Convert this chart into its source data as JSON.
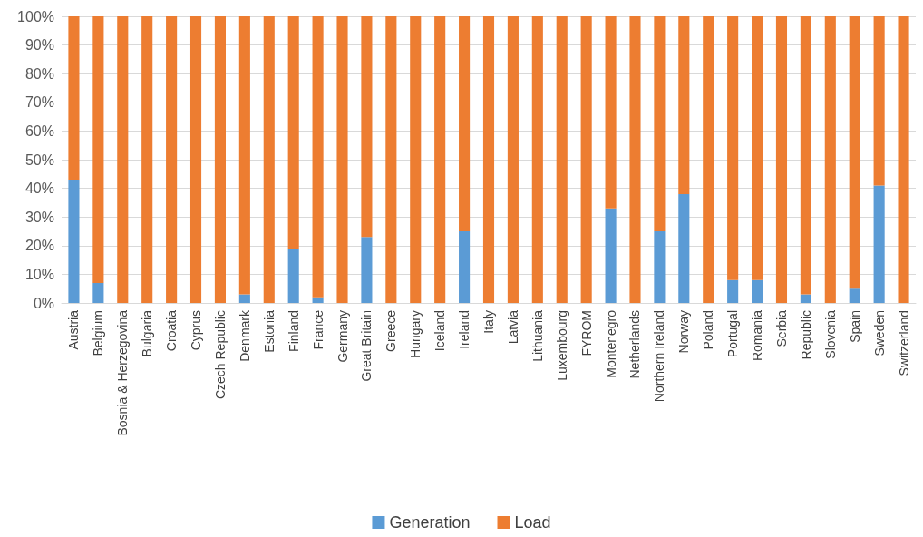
{
  "chart_data": {
    "type": "bar",
    "stacked": true,
    "categories": [
      "Austria",
      "Belgium",
      "Bosnia & Herzegovina",
      "Bulgaria",
      "Croatia",
      "Cyprus",
      "Czech Republic",
      "Denmark",
      "Estonia",
      "Finland",
      "France",
      "Germany",
      "Great Britain",
      "Greece",
      "Hungary",
      "Iceland",
      "Ireland",
      "Italy",
      "Latvia",
      "Lithuania",
      "Luxembourg",
      "FYROM",
      "Montenegro",
      "Netherlands",
      "Northern Ireland",
      "Norway",
      "Poland",
      "Portugal",
      "Romania",
      "Serbia",
      "Republic",
      "Slovenia",
      "Spain",
      "Sweden",
      "Switzerland"
    ],
    "series": [
      {
        "name": "Generation",
        "color": "#5b9bd5",
        "values": [
          43,
          7,
          0,
          0,
          0,
          0,
          0,
          3,
          0,
          19,
          2,
          0,
          23,
          0,
          0,
          0,
          25,
          0,
          0,
          0,
          0,
          0,
          33,
          0,
          25,
          38,
          0,
          8,
          8,
          0,
          3,
          0,
          5,
          41,
          0
        ]
      },
      {
        "name": "Load",
        "color": "#ed7d31",
        "values": [
          57,
          93,
          100,
          100,
          100,
          100,
          100,
          97,
          100,
          81,
          98,
          100,
          77,
          100,
          100,
          100,
          75,
          100,
          100,
          100,
          100,
          100,
          67,
          100,
          75,
          62,
          100,
          92,
          92,
          100,
          97,
          100,
          95,
          59,
          100
        ]
      }
    ],
    "ylim": [
      0,
      100
    ],
    "yticks": [
      {
        "value": 0,
        "label": "0%"
      },
      {
        "value": 10,
        "label": "10%"
      },
      {
        "value": 20,
        "label": "20%"
      },
      {
        "value": 30,
        "label": "30%"
      },
      {
        "value": 40,
        "label": "40%"
      },
      {
        "value": 50,
        "label": "50%"
      },
      {
        "value": 60,
        "label": "60%"
      },
      {
        "value": 70,
        "label": "70%"
      },
      {
        "value": 80,
        "label": "80%"
      },
      {
        "value": 90,
        "label": "90%"
      },
      {
        "value": 100,
        "label": "100%"
      }
    ],
    "grid": "y",
    "legend": "bottom"
  }
}
